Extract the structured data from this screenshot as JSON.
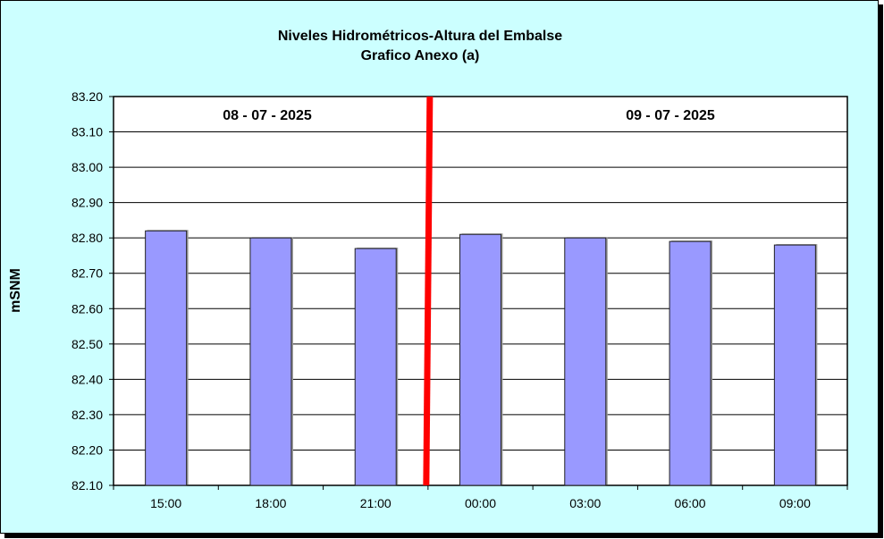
{
  "chart_data": {
    "type": "bar",
    "title": "Niveles Hidrométricos-Altura del Embalse",
    "subtitle": "Grafico Anexo (a)",
    "ylabel": "mSNM",
    "xlabel": "",
    "ylim": [
      82.1,
      83.2
    ],
    "yticks": [
      "82.10",
      "82.20",
      "82.30",
      "82.40",
      "82.50",
      "82.60",
      "82.70",
      "82.80",
      "82.90",
      "83.00",
      "83.10",
      "83.20"
    ],
    "categories": [
      "15:00",
      "18:00",
      "21:00",
      "00:00",
      "03:00",
      "06:00",
      "09:00"
    ],
    "values": [
      82.82,
      82.8,
      82.77,
      82.81,
      82.8,
      82.79,
      82.78
    ],
    "grid": true,
    "annotations": [
      "08 - 07 - 2025",
      "09 - 07 - 2025"
    ],
    "divider_after_category": "21:00",
    "colors": {
      "bar": "#9999ff",
      "divider": "#ff0000",
      "background": "#ccffff",
      "plot": "#ffffff"
    }
  }
}
